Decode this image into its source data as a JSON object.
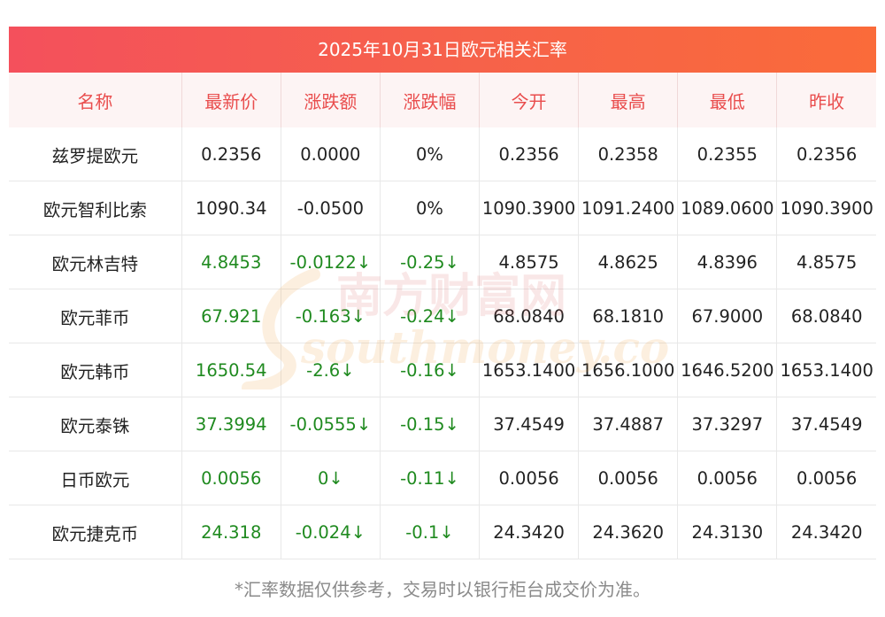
{
  "title": "2025年10月31日欧元相关汇率",
  "headers": [
    "名称",
    "最新价",
    "涨跌额",
    "涨跌幅",
    "今开",
    "最高",
    "最低",
    "昨收"
  ],
  "rows": [
    {
      "name": "兹罗提欧元",
      "latest": "0.2356",
      "change": "0.0000",
      "pct": "0%",
      "open": "0.2356",
      "high": "0.2358",
      "low": "0.2355",
      "prev": "0.2356",
      "down": false
    },
    {
      "name": "欧元智利比索",
      "latest": "1090.34",
      "change": "-0.0500",
      "pct": "0%",
      "open": "1090.3900",
      "high": "1091.2400",
      "low": "1089.0600",
      "prev": "1090.3900",
      "down": false
    },
    {
      "name": "欧元林吉特",
      "latest": "4.8453",
      "change": "-0.0122↓",
      "pct": "-0.25↓",
      "open": "4.8575",
      "high": "4.8625",
      "low": "4.8396",
      "prev": "4.8575",
      "down": true
    },
    {
      "name": "欧元菲币",
      "latest": "67.921",
      "change": "-0.163↓",
      "pct": "-0.24↓",
      "open": "68.0840",
      "high": "68.1810",
      "low": "67.9000",
      "prev": "68.0840",
      "down": true
    },
    {
      "name": "欧元韩币",
      "latest": "1650.54",
      "change": "-2.6↓",
      "pct": "-0.16↓",
      "open": "1653.1400",
      "high": "1656.1000",
      "low": "1646.5200",
      "prev": "1653.1400",
      "down": true
    },
    {
      "name": "欧元泰铢",
      "latest": "37.3994",
      "change": "-0.0555↓",
      "pct": "-0.15↓",
      "open": "37.4549",
      "high": "37.4887",
      "low": "37.3297",
      "prev": "37.4549",
      "down": true
    },
    {
      "name": "日币欧元",
      "latest": "0.0056",
      "change": "0↓",
      "pct": "-0.11↓",
      "open": "0.0056",
      "high": "0.0056",
      "low": "0.0056",
      "prev": "0.0056",
      "down": true
    },
    {
      "name": "欧元捷克币",
      "latest": "24.318",
      "change": "-0.024↓",
      "pct": "-0.1↓",
      "open": "24.3420",
      "high": "24.3620",
      "low": "24.3130",
      "prev": "24.3420",
      "down": true
    }
  ],
  "footer": "*汇率数据仅供参考，交易时以银行柜台成交价为准。",
  "watermark": {
    "cn": "南方财富网",
    "en": "southmoney.com"
  },
  "colors": {
    "header_text": "#e94d4d",
    "down": "#1f8a1f",
    "title_bar": "#f6614b"
  }
}
